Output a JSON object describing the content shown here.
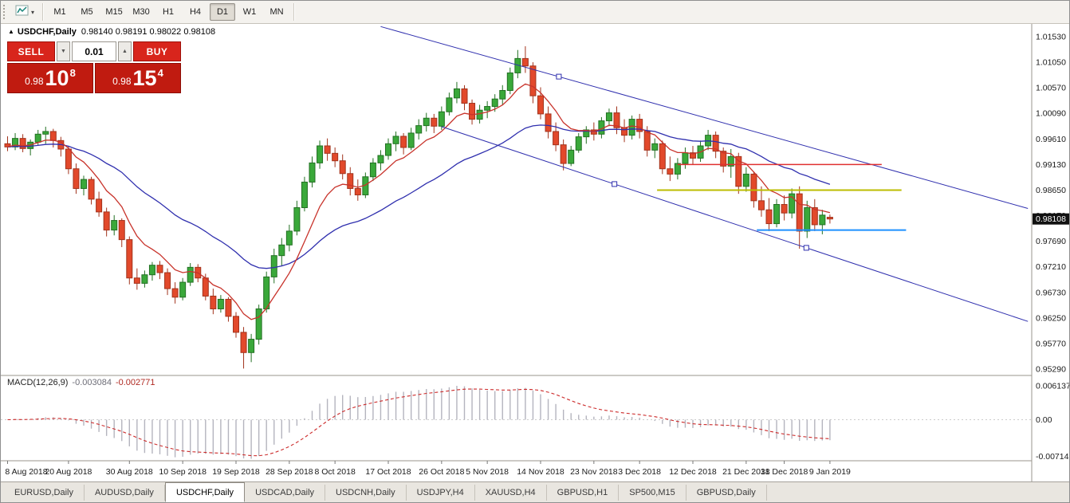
{
  "icons": {
    "collapse": "▲",
    "caret_down": "▾",
    "spinner_up": "▲",
    "spinner_down": "▼"
  },
  "toolbar": {
    "timeframes": [
      {
        "label": "M1"
      },
      {
        "label": "M5"
      },
      {
        "label": "M15"
      },
      {
        "label": "M30"
      },
      {
        "label": "H1"
      },
      {
        "label": "H4"
      },
      {
        "label": "D1",
        "active": true
      },
      {
        "label": "W1"
      },
      {
        "label": "MN"
      }
    ]
  },
  "header": {
    "symbol_title": "USDCHF,Daily",
    "ohlc": "0.98140 0.98191 0.98022 0.98108"
  },
  "trade_panel": {
    "sell_label": "SELL",
    "buy_label": "BUY",
    "volume": "0.01",
    "sell_price": {
      "prefix": "0.98",
      "big": "10",
      "sup": "8"
    },
    "buy_price": {
      "prefix": "0.98",
      "big": "15",
      "sup": "4"
    }
  },
  "tabs": [
    {
      "label": "EURUSD,Daily"
    },
    {
      "label": "AUDUSD,Daily"
    },
    {
      "label": "USDCHF,Daily",
      "active": true
    },
    {
      "label": "USDCAD,Daily"
    },
    {
      "label": "USDCNH,Daily"
    },
    {
      "label": "USDJPY,H4"
    },
    {
      "label": "XAUUSD,H4"
    },
    {
      "label": "GBPUSD,H1"
    },
    {
      "label": "SP500,M15"
    },
    {
      "label": "GBPUSD,Daily"
    }
  ],
  "chart_data": {
    "type": "candlestick",
    "symbol": "USDCHF",
    "timeframe": "Daily",
    "current_price": 0.98108,
    "current_price_label": "0.98108",
    "y_axis_labels": [
      "1.01530",
      "1.01050",
      "1.00570",
      "1.00090",
      "0.99610",
      "0.99130",
      "0.98650",
      "0.98170",
      "0.97690",
      "0.97210",
      "0.96730",
      "0.96250",
      "0.95770",
      "0.95290"
    ],
    "y_top": 1.0153,
    "y_bottom": 0.9529,
    "x_labels": [
      [
        0,
        "8 Aug 2018"
      ],
      [
        8,
        "20 Aug 2018"
      ],
      [
        16,
        "30 Aug 2018"
      ],
      [
        23,
        "10 Sep 2018"
      ],
      [
        30,
        "19 Sep 2018"
      ],
      [
        37,
        "28 Sep 2018"
      ],
      [
        43,
        "8 Oct 2018"
      ],
      [
        50,
        "17 Oct 2018"
      ],
      [
        57,
        "26 Oct 2018"
      ],
      [
        63,
        "5 Nov 2018"
      ],
      [
        70,
        "14 Nov 2018"
      ],
      [
        77,
        "23 Nov 2018"
      ],
      [
        83,
        "3 Dec 2018"
      ],
      [
        90,
        "12 Dec 2018"
      ],
      [
        97,
        "21 Dec 2018"
      ],
      [
        102,
        "31 Dec 2018"
      ],
      [
        108,
        "9 Jan 2019"
      ]
    ],
    "ohlc": [
      [
        0.9952,
        0.9966,
        0.9938,
        0.9946
      ],
      [
        0.9946,
        0.9972,
        0.994,
        0.9962
      ],
      [
        0.9962,
        0.997,
        0.9936,
        0.9943
      ],
      [
        0.9943,
        0.996,
        0.993,
        0.9955
      ],
      [
        0.9955,
        0.9978,
        0.9948,
        0.997
      ],
      [
        0.997,
        0.9984,
        0.9952,
        0.9975
      ],
      [
        0.9975,
        0.998,
        0.9945,
        0.9958
      ],
      [
        0.9958,
        0.9965,
        0.9928,
        0.9942
      ],
      [
        0.9942,
        0.9948,
        0.9895,
        0.9905
      ],
      [
        0.9905,
        0.9915,
        0.9858,
        0.9868
      ],
      [
        0.9868,
        0.9892,
        0.9855,
        0.9885
      ],
      [
        0.9885,
        0.989,
        0.9838,
        0.9848
      ],
      [
        0.9848,
        0.9862,
        0.9815,
        0.9824
      ],
      [
        0.9824,
        0.9832,
        0.9778,
        0.979
      ],
      [
        0.979,
        0.9818,
        0.978,
        0.9808
      ],
      [
        0.9808,
        0.9812,
        0.9758,
        0.9772
      ],
      [
        0.9772,
        0.9778,
        0.9688,
        0.97
      ],
      [
        0.97,
        0.9718,
        0.9678,
        0.969
      ],
      [
        0.969,
        0.9714,
        0.9682,
        0.9706
      ],
      [
        0.9706,
        0.973,
        0.9695,
        0.9724
      ],
      [
        0.9724,
        0.9732,
        0.9698,
        0.971
      ],
      [
        0.971,
        0.9718,
        0.9668,
        0.968
      ],
      [
        0.968,
        0.9692,
        0.9652,
        0.9664
      ],
      [
        0.9664,
        0.97,
        0.9658,
        0.9692
      ],
      [
        0.9692,
        0.9728,
        0.9685,
        0.972
      ],
      [
        0.972,
        0.9726,
        0.9692,
        0.97
      ],
      [
        0.97,
        0.9708,
        0.9658,
        0.9666
      ],
      [
        0.9666,
        0.968,
        0.9632,
        0.9642
      ],
      [
        0.9642,
        0.9668,
        0.9635,
        0.966
      ],
      [
        0.966,
        0.9664,
        0.9618,
        0.9628
      ],
      [
        0.9628,
        0.9636,
        0.9588,
        0.9598
      ],
      [
        0.9598,
        0.9608,
        0.953,
        0.956
      ],
      [
        0.956,
        0.9595,
        0.9542,
        0.9585
      ],
      [
        0.9585,
        0.965,
        0.9575,
        0.9642
      ],
      [
        0.9642,
        0.9712,
        0.9635,
        0.9702
      ],
      [
        0.9702,
        0.9755,
        0.969,
        0.9742
      ],
      [
        0.9742,
        0.9775,
        0.9722,
        0.9762
      ],
      [
        0.9762,
        0.98,
        0.975,
        0.9788
      ],
      [
        0.9788,
        0.9845,
        0.978,
        0.9832
      ],
      [
        0.9832,
        0.989,
        0.9825,
        0.988
      ],
      [
        0.988,
        0.9928,
        0.987,
        0.9916
      ],
      [
        0.9916,
        0.9958,
        0.9905,
        0.9948
      ],
      [
        0.9948,
        0.9962,
        0.992,
        0.9934
      ],
      [
        0.9934,
        0.9945,
        0.9908,
        0.992
      ],
      [
        0.992,
        0.9932,
        0.9885,
        0.9896
      ],
      [
        0.9896,
        0.9908,
        0.9855,
        0.9868
      ],
      [
        0.9868,
        0.9885,
        0.9845,
        0.9856
      ],
      [
        0.9856,
        0.9898,
        0.985,
        0.989
      ],
      [
        0.989,
        0.9925,
        0.9882,
        0.9916
      ],
      [
        0.9916,
        0.994,
        0.9902,
        0.993
      ],
      [
        0.993,
        0.9962,
        0.9922,
        0.9952
      ],
      [
        0.9952,
        0.9975,
        0.9938,
        0.9966
      ],
      [
        0.9966,
        0.9972,
        0.9932,
        0.9945
      ],
      [
        0.9945,
        0.9982,
        0.994,
        0.9972
      ],
      [
        0.9972,
        0.9998,
        0.996,
        0.9986
      ],
      [
        0.9986,
        1.001,
        0.9975,
        1.0
      ],
      [
        1.0,
        1.0008,
        0.9972,
        0.9985
      ],
      [
        0.9985,
        1.0022,
        0.9978,
        1.0012
      ],
      [
        1.0012,
        1.0048,
        1.0005,
        1.0038
      ],
      [
        1.0038,
        1.0068,
        1.0028,
        1.0055
      ],
      [
        1.0055,
        1.0062,
        1.0015,
        1.0028
      ],
      [
        1.0028,
        1.0035,
        0.9988,
        0.9998
      ],
      [
        0.9998,
        1.0025,
        0.999,
        1.0015
      ],
      [
        1.0015,
        1.0032,
        1.0,
        1.0022
      ],
      [
        1.0022,
        1.0045,
        1.0012,
        1.0036
      ],
      [
        1.0036,
        1.0062,
        1.0025,
        1.0052
      ],
      [
        1.0052,
        1.0095,
        1.0045,
        1.0085
      ],
      [
        1.0085,
        1.0128,
        1.0075,
        1.0112
      ],
      [
        1.0112,
        1.0135,
        1.0085,
        1.0098
      ],
      [
        1.0098,
        1.0105,
        1.0028,
        1.0042
      ],
      [
        1.0042,
        1.0058,
        0.9998,
        1.0008
      ],
      [
        1.0008,
        1.0022,
        0.9962,
        0.9975
      ],
      [
        0.9975,
        0.9992,
        0.9938,
        0.995
      ],
      [
        0.995,
        0.996,
        0.9902,
        0.9915
      ],
      [
        0.9915,
        0.9948,
        0.991,
        0.994
      ],
      [
        0.994,
        0.9972,
        0.9935,
        0.9965
      ],
      [
        0.9965,
        0.9985,
        0.9952,
        0.9978
      ],
      [
        0.9978,
        0.9992,
        0.9958,
        0.997
      ],
      [
        0.997,
        1.0002,
        0.9962,
        0.9995
      ],
      [
        0.9995,
        1.0018,
        0.9985,
        1.001
      ],
      [
        1.001,
        1.0022,
        0.997,
        0.9982
      ],
      [
        0.9982,
        0.9998,
        0.9955,
        0.9968
      ],
      [
        0.9968,
        1.0005,
        0.996,
        0.9998
      ],
      [
        0.9998,
        1.0008,
        0.9962,
        0.9975
      ],
      [
        0.9975,
        0.9985,
        0.9928,
        0.994
      ],
      [
        0.994,
        0.9962,
        0.9925,
        0.9952
      ],
      [
        0.9952,
        0.9958,
        0.9895,
        0.9905
      ],
      [
        0.9905,
        0.9928,
        0.9882,
        0.9895
      ],
      [
        0.9895,
        0.9925,
        0.9885,
        0.9915
      ],
      [
        0.9915,
        0.9945,
        0.9905,
        0.9935
      ],
      [
        0.9935,
        0.9948,
        0.9912,
        0.9925
      ],
      [
        0.9925,
        0.9958,
        0.9918,
        0.9948
      ],
      [
        0.9948,
        0.9978,
        0.994,
        0.9968
      ],
      [
        0.9968,
        0.9975,
        0.9925,
        0.9938
      ],
      [
        0.9938,
        0.9945,
        0.9898,
        0.991
      ],
      [
        0.991,
        0.9942,
        0.9888,
        0.9928
      ],
      [
        0.9928,
        0.9935,
        0.9858,
        0.9872
      ],
      [
        0.9872,
        0.9908,
        0.9862,
        0.9895
      ],
      [
        0.9895,
        0.99,
        0.9832,
        0.9845
      ],
      [
        0.9845,
        0.9872,
        0.9815,
        0.9828
      ],
      [
        0.9828,
        0.985,
        0.9788,
        0.9802
      ],
      [
        0.9802,
        0.9848,
        0.9795,
        0.9838
      ],
      [
        0.9838,
        0.9855,
        0.9808,
        0.9822
      ],
      [
        0.9822,
        0.9868,
        0.9812,
        0.9858
      ],
      [
        0.9858,
        0.9872,
        0.9755,
        0.9788
      ],
      [
        0.9788,
        0.9845,
        0.9775,
        0.9832
      ],
      [
        0.9832,
        0.9848,
        0.9788,
        0.98
      ],
      [
        0.98,
        0.9828,
        0.9782,
        0.9818
      ],
      [
        0.9814,
        0.98191,
        0.98022,
        0.98108
      ]
    ],
    "colors": {
      "up_fill": "#3aa83a",
      "up_stroke": "#237023",
      "down_fill": "#e2492b",
      "down_stroke": "#a2331c",
      "ma_fast": "#c8332b",
      "ma_slow": "#2f2fae",
      "trendline": "#2f2fae",
      "hline_red": "#e03030",
      "hline_yellow": "#bcbc00",
      "hline_blue": "#1e90ff",
      "macd_hist": "#b4b4be",
      "macd_signal": "#cc2a2a"
    },
    "moving_averages": [
      {
        "name": "ma-fast",
        "period": 8
      },
      {
        "name": "ma-slow",
        "period": 28
      }
    ],
    "trendlines": [
      {
        "name": "trendline-channel-upper",
        "from": [
          49,
          1.0172
        ],
        "to": [
          134,
          0.98305
        ]
      },
      {
        "name": "trendline-channel-lower",
        "from": [
          57,
          0.99841
        ],
        "to": [
          134,
          0.96185
        ]
      }
    ],
    "handles": [
      [
        72.4,
        1.0078
      ],
      [
        79.7,
        0.98763
      ],
      [
        104.9,
        0.97566
      ]
    ],
    "hlines": [
      {
        "name": "hline-resistance-red",
        "color_key": "hline_red",
        "price": 0.9913,
        "from": 88,
        "to": 114.8,
        "width": 1.5
      },
      {
        "name": "hline-level-yellow",
        "color_key": "hline_yellow",
        "price": 0.9865,
        "from": 85.3,
        "to": 117.4,
        "width": 2
      },
      {
        "name": "hline-support-blue",
        "color_key": "hline_blue",
        "price": 0.979,
        "from": 98.4,
        "to": 118,
        "width": 2
      }
    ],
    "macd": {
      "label": "MACD(12,26,9)",
      "value_main": "-0.003084",
      "value_signal": "-0.002771",
      "fast": 12,
      "slow": 26,
      "signal": 9,
      "max": 0.006137,
      "min": -0.007142,
      "axis_labels": [
        [
          "0.006137",
          0.006137
        ],
        [
          "0.00",
          0
        ],
        [
          "-0.007142",
          -0.007142
        ]
      ]
    }
  }
}
